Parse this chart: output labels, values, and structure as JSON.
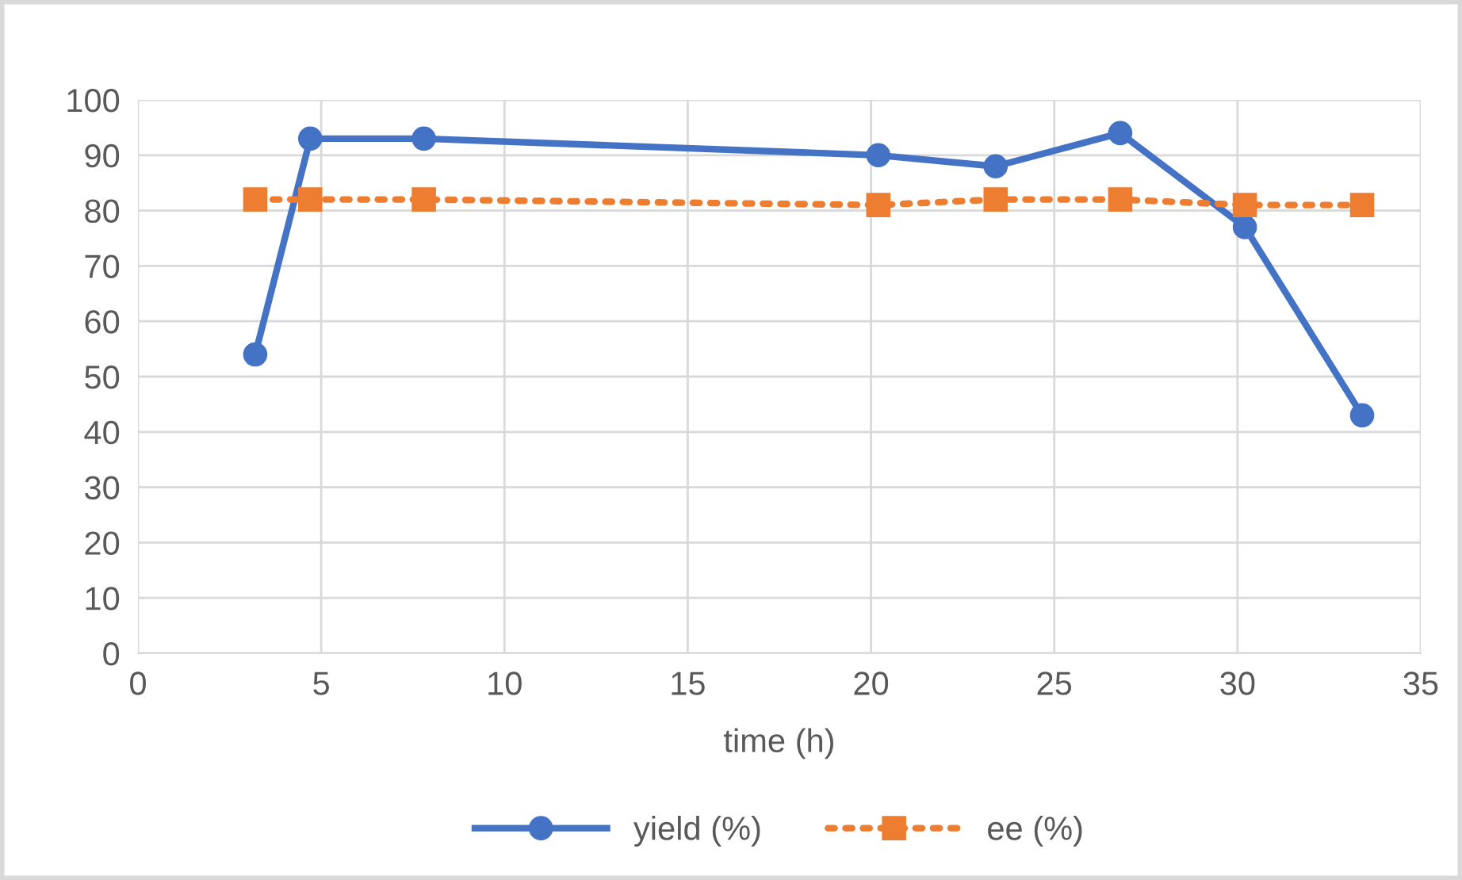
{
  "chart_data": {
    "type": "line",
    "xlabel": "time (h)",
    "x": [
      3.2,
      4.7,
      7.8,
      20.2,
      23.4,
      26.8,
      30.2,
      33.4
    ],
    "series": [
      {
        "name": "yield (%)",
        "color": "#4472c4",
        "marker": "circle",
        "line_style": "solid",
        "values": [
          54,
          93,
          93,
          90,
          88,
          94,
          77,
          43
        ]
      },
      {
        "name": "ee (%)",
        "color": "#ed7d31",
        "marker": "square",
        "line_style": "dotted",
        "values": [
          82,
          82,
          82,
          81,
          82,
          82,
          81,
          81
        ]
      }
    ],
    "xlim": [
      0,
      35
    ],
    "xticks": [
      0,
      5,
      10,
      15,
      20,
      25,
      30,
      35
    ],
    "ylim": [
      0,
      100
    ],
    "yticks": [
      0,
      10,
      20,
      30,
      40,
      50,
      60,
      70,
      80,
      90,
      100
    ],
    "grid": true,
    "legend": "bottom"
  }
}
